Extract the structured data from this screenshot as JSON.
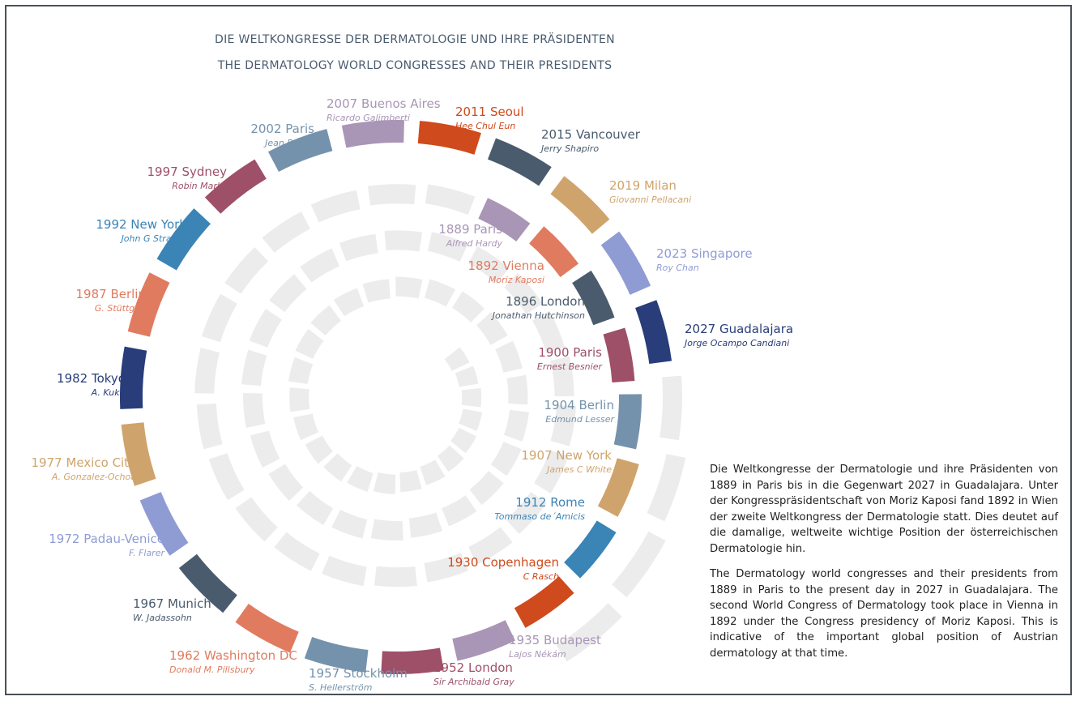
{
  "title": [
    "DIE WELTKONGRESSE DER DERMATOLOGIE UND IHRE PRÄSIDENTEN",
    "THE DERMATOLOGY WORLD CONGRESSES AND THEIR PRESIDENTS"
  ],
  "congresses": [
    {
      "name": "1889 Paris",
      "president": "Alfred Hardy",
      "color": "#a995b6"
    },
    {
      "name": "1892 Vienna",
      "president": "Moriz Kaposi",
      "color": "#e07b60"
    },
    {
      "name": "1896 London",
      "president": "Jonathan Hutchinson",
      "color": "#4a5b6e"
    },
    {
      "name": "1900 Paris",
      "president": "Ernest Besnier",
      "color": "#9e5068"
    },
    {
      "name": "1904 Berlin",
      "president": "Edmund Lesser",
      "color": "#7592ad"
    },
    {
      "name": "1907 New York",
      "president": "James C White",
      "color": "#cfa46c"
    },
    {
      "name": "1912 Rome",
      "president": "Tommaso de´Amicis",
      "color": "#3a84b6"
    },
    {
      "name": "1930 Copenhagen",
      "president": "C Rasch",
      "color": "#cf4a1c"
    },
    {
      "name": "1935 Budapest",
      "president": "Lajos Nékám",
      "color": "#a995b6"
    },
    {
      "name": "1952 London",
      "president": "Sir Archibald Gray",
      "color": "#9e5068"
    },
    {
      "name": "1957 Stockholm",
      "president": "S. Hellerström",
      "color": "#7592ad"
    },
    {
      "name": "1962 Washington DC",
      "president": "Donald M. Pillsbury",
      "color": "#e07b60"
    },
    {
      "name": "1967 Munich",
      "president": "W. Jadassohn",
      "color": "#4a5b6e"
    },
    {
      "name": "1972 Padau-Venice",
      "president": "F. Flarer",
      "color": "#8f9cd4"
    },
    {
      "name": "1977 Mexico City",
      "president": "A. Gonzalez-Ochoa",
      "color": "#cfa46c"
    },
    {
      "name": "1982 Tokyo",
      "president": "A. Kukit",
      "color": "#283d7a"
    },
    {
      "name": "1987 Berlin",
      "president": "G. Stüttgen",
      "color": "#e07b60"
    },
    {
      "name": "1992 New York",
      "president": "John G Strauss",
      "color": "#3a84b6"
    },
    {
      "name": "1997 Sydney",
      "president": "Robin Marks",
      "color": "#9e5068"
    },
    {
      "name": "2002 Paris",
      "president": "Jean Revuz",
      "color": "#7592ad"
    },
    {
      "name": "2007 Buenos Aires",
      "president": "Ricardo Galimberti",
      "color": "#a995b6"
    },
    {
      "name": "2011 Seoul",
      "president": "Hee Chul Eun",
      "color": "#cf4a1c"
    },
    {
      "name": "2015 Vancouver",
      "president": "Jerry Shapiro",
      "color": "#4a5b6e"
    },
    {
      "name": "2019 Milan",
      "president": "Giovanni Pellacani",
      "color": "#cfa46c"
    },
    {
      "name": "2023 Singapore",
      "president": "Roy Chan",
      "color": "#8f9cd4"
    },
    {
      "name": "2027 Guadalajara",
      "president": "Jorge Ocampo Candiani",
      "color": "#283d7a"
    }
  ],
  "description": [
    "Die Weltkongresse der Dermatologie und ihre Präsidenten von 1889 in Paris bis in die Gegenwart 2027 in Guadalajara. Unter der Kongresspräsidentschaft von Moriz Kaposi fand 1892 in Wien der zweite Weltkongress der Dermatologie statt. Dies deutet auf die damalige, weltweite wichtige Position der österreichischen Dermatologie hin.",
    "The Dermatology world congresses and their presidents from 1889 in Paris to the present day in 2027 in Guadalajara. The second World Congress of Dermatology took place in Vienna in 1892 under the Congress presidency of Moriz Kaposi. This is indicative of the important global position of Austrian dermatology at that time."
  ]
}
